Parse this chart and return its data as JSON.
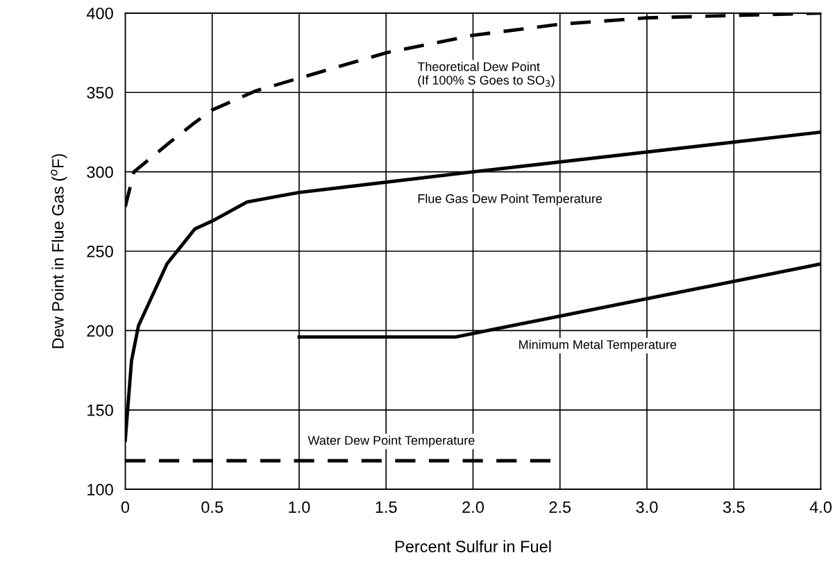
{
  "chart_data": {
    "type": "line",
    "xlabel": "Percent Sulfur in Fuel",
    "ylabel": "Dew Point in Flue Gas ($^{o}$F)",
    "xlim": [
      0,
      4
    ],
    "ylim": [
      100,
      400
    ],
    "xticks": [
      0,
      0.5,
      {
        "value": 1,
        "label": "1.0"
      },
      1.5,
      {
        "value": 2,
        "label": "2.0"
      },
      2.5,
      {
        "value": 3,
        "label": "3.0"
      },
      3.5,
      {
        "value": 4,
        "label": "4.0"
      }
    ],
    "yticks": [
      100,
      150,
      200,
      250,
      300,
      350,
      400
    ],
    "grid": true,
    "marker": "none",
    "series": [
      {
        "name": "Theoretical Dew Point\n(If 100% S Goes to SO$_{3}$)",
        "color": "#000000",
        "line_style": "dashed",
        "x": [
          0,
          0.05,
          0.25,
          0.4,
          0.5,
          0.75,
          1.0,
          1.5,
          2.0,
          2.5,
          3.0,
          4.0
        ],
        "values": [
          278,
          300,
          318,
          331,
          339,
          351,
          359,
          375,
          386,
          393,
          397,
          400
        ]
      },
      {
        "name": "Flue Gas Dew Point Temperature",
        "color": "#000000",
        "line_style": "solid",
        "x": [
          0,
          0.036,
          0.076,
          0.24,
          0.4,
          0.5,
          0.7,
          0.9,
          1.0,
          2.0,
          4.0
        ],
        "values": [
          131,
          181,
          203,
          242,
          264,
          269,
          281,
          285,
          287,
          300,
          325
        ]
      },
      {
        "name": "Minimum Metal Temperature",
        "color": "#000000",
        "line_style": "solid",
        "x": [
          1.0,
          1.9,
          4.0
        ],
        "values": [
          196,
          196,
          242
        ]
      },
      {
        "name": "Water Dew Point Temperature",
        "color": "#000000",
        "line_style": "dashed",
        "x": [
          0,
          2.5
        ],
        "values": [
          118,
          118
        ]
      }
    ]
  }
}
